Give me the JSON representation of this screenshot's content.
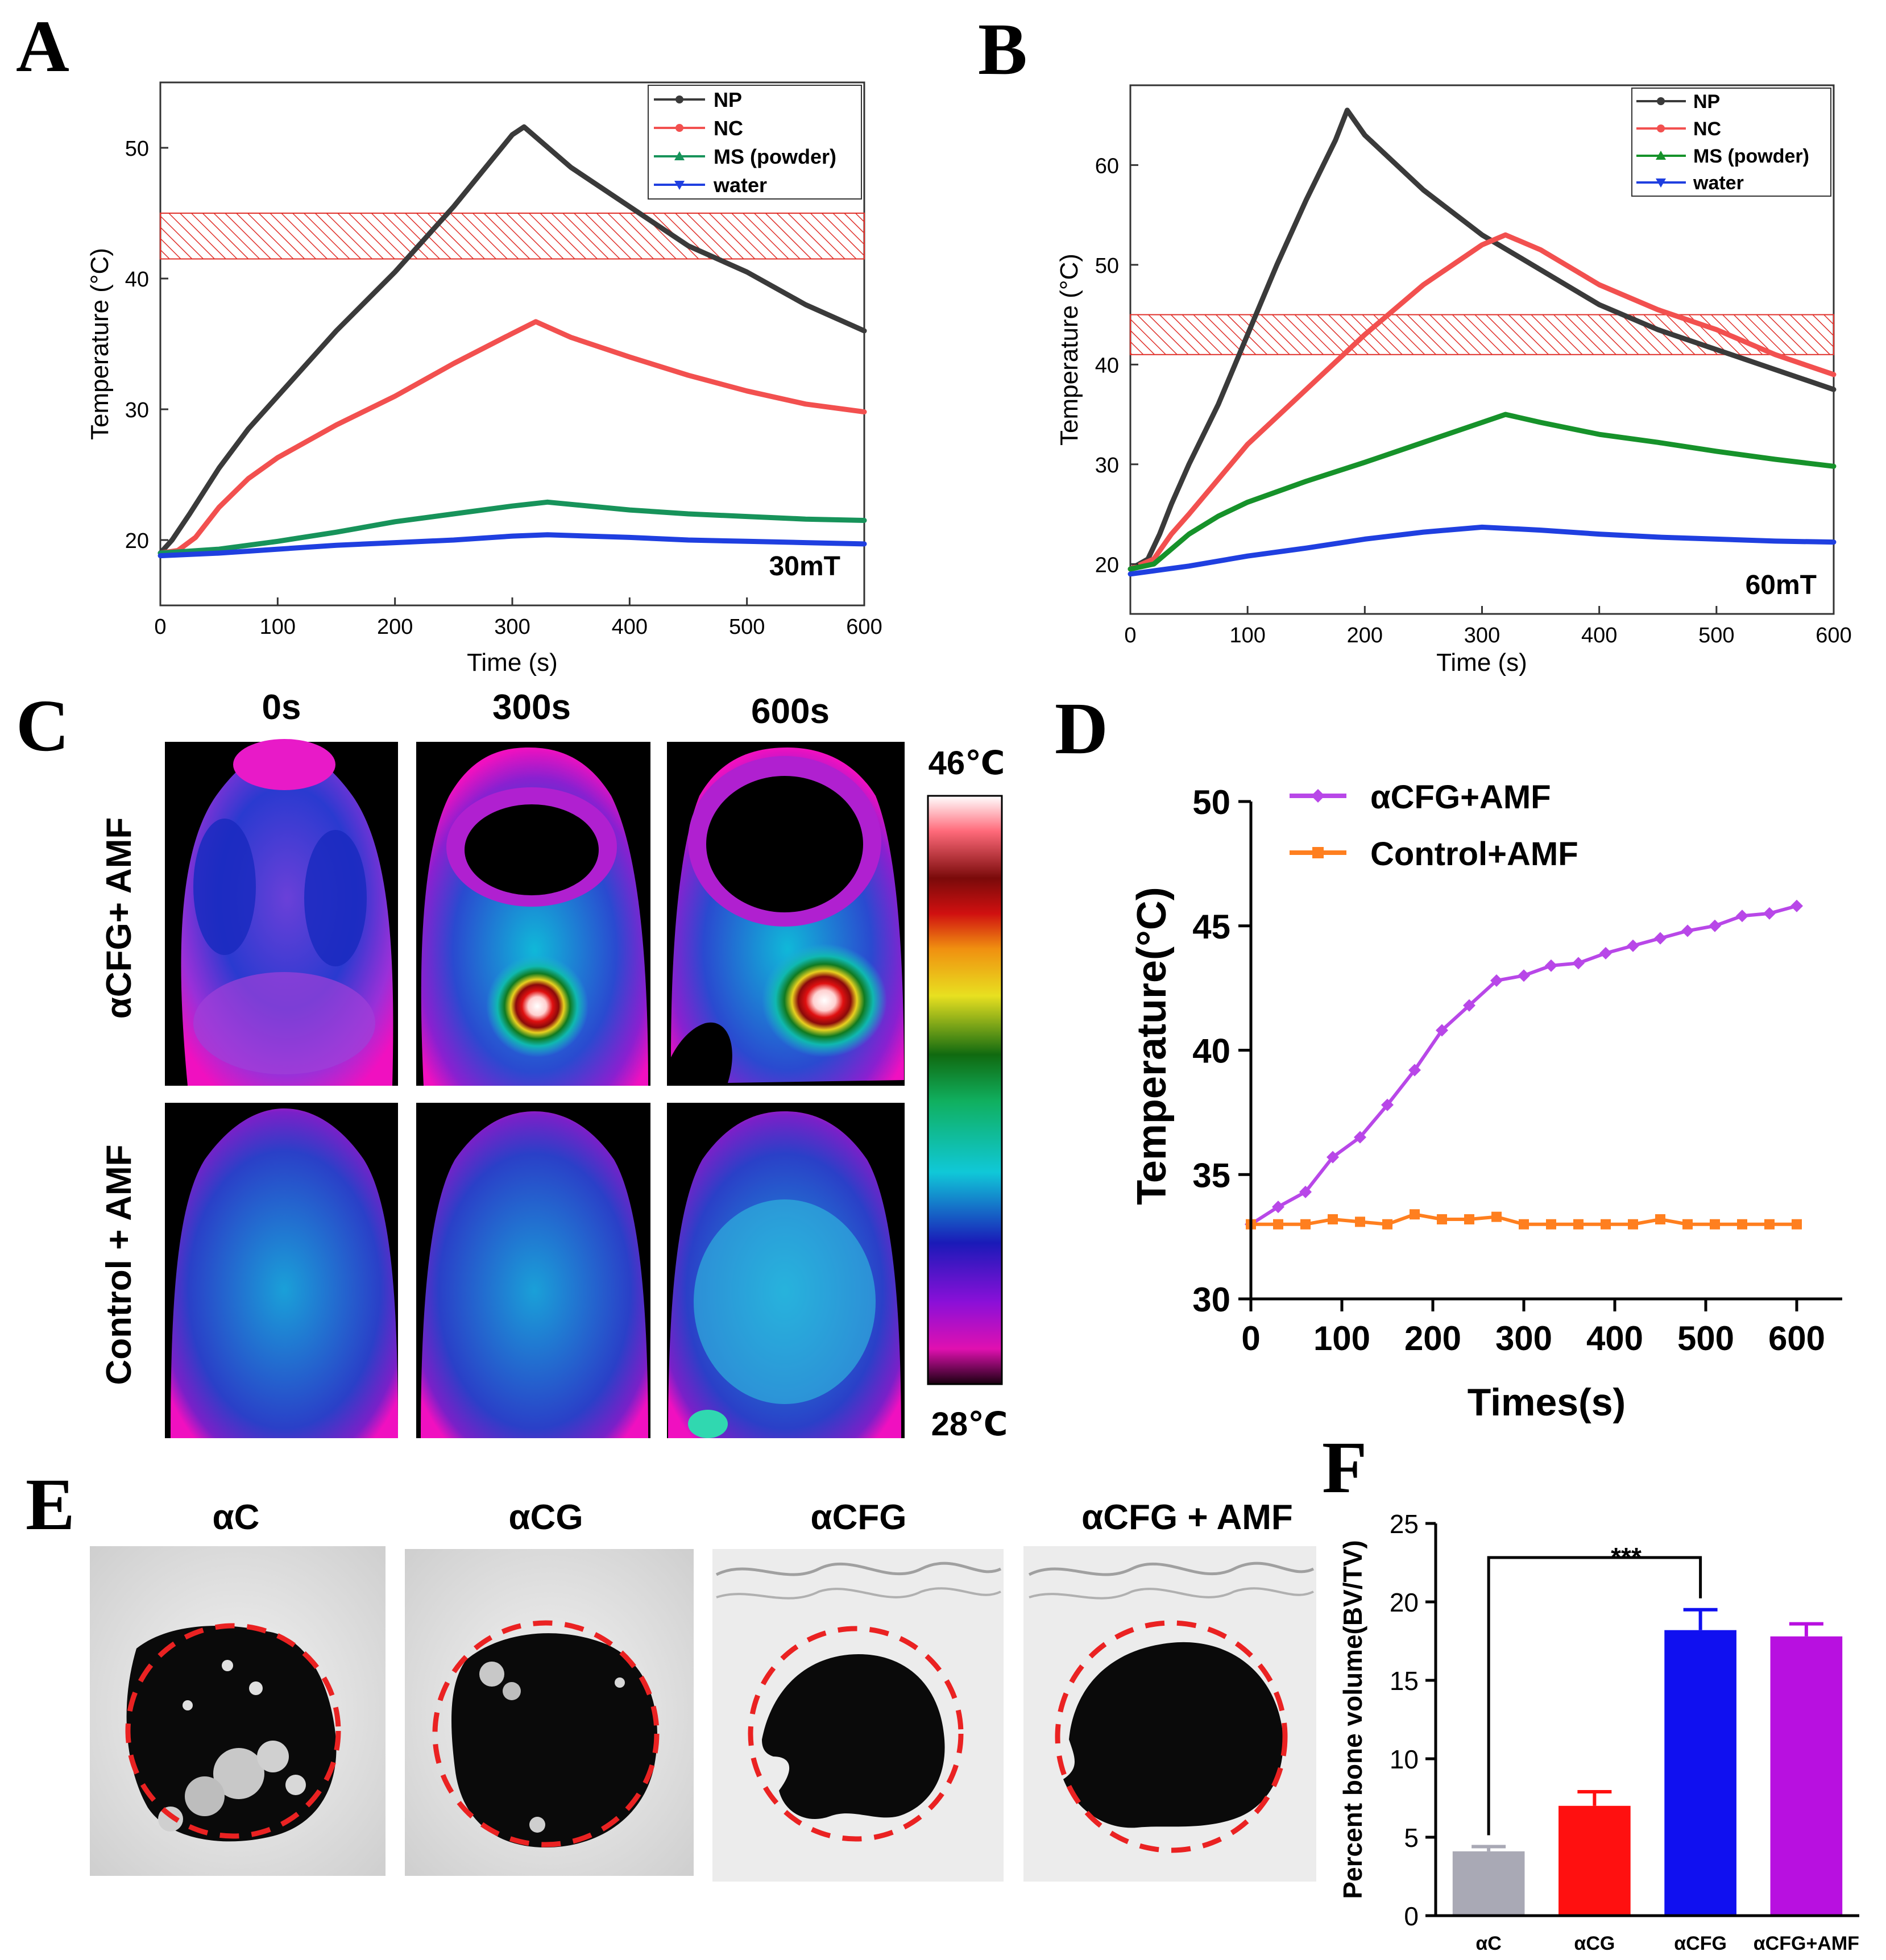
{
  "panels": {
    "a": {
      "letter": "A"
    },
    "b": {
      "letter": "B"
    },
    "c": {
      "letter": "C"
    },
    "d": {
      "letter": "D"
    },
    "e": {
      "letter": "E"
    },
    "f": {
      "letter": "F"
    }
  },
  "thermal": {
    "time_labels": [
      "0s",
      "300s",
      "600s"
    ],
    "row_labels": [
      "αCFG+ AMF",
      "Control + AMF"
    ],
    "colorbar_max": "46℃",
    "colorbar_min": "28℃",
    "colorbar_range_c": [
      28,
      46
    ]
  },
  "microct": {
    "labels": [
      "αC",
      "αCG",
      "αCFG",
      "αCFG + AMF"
    ]
  },
  "colors": {
    "NP": "#3a3a3a",
    "NC": "#f2504f",
    "MS": "#17935a",
    "water": "#1f3fe0",
    "aCFG_AMF": "#b847e8",
    "control_AMF": "#ff7f1f",
    "hatch": "#e0302a"
  },
  "chart_data": [
    {
      "id": "A",
      "type": "line",
      "field_label": "30mT",
      "xlabel": "Time (s)",
      "ylabel": "Temperature (°C)",
      "xlim": [
        0,
        600
      ],
      "ylim": [
        15,
        55
      ],
      "xticks": [
        0,
        100,
        200,
        300,
        400,
        500,
        600
      ],
      "yticks": [
        20,
        30,
        40,
        50
      ],
      "hatched_band": [
        41.5,
        45
      ],
      "legend_position": "top-right",
      "series": [
        {
          "name": "NP",
          "x": [
            0,
            10,
            25,
            50,
            75,
            100,
            150,
            200,
            250,
            300,
            310,
            350,
            400,
            450,
            500,
            550,
            600
          ],
          "y": [
            19,
            20,
            22,
            25.5,
            28.5,
            31,
            36,
            40.5,
            45.5,
            51,
            51.6,
            48.5,
            45.5,
            42.5,
            40.5,
            38,
            36
          ]
        },
        {
          "name": "NC",
          "x": [
            0,
            15,
            30,
            50,
            75,
            100,
            150,
            200,
            250,
            300,
            320,
            350,
            400,
            450,
            500,
            550,
            600
          ],
          "y": [
            19,
            19.2,
            20.2,
            22.5,
            24.7,
            26.3,
            28.8,
            31,
            33.5,
            35.8,
            36.7,
            35.5,
            34,
            32.6,
            31.4,
            30.4,
            29.8
          ]
        },
        {
          "name": "MS (powder)",
          "x": [
            0,
            50,
            100,
            150,
            200,
            250,
            300,
            330,
            400,
            450,
            500,
            550,
            600
          ],
          "y": [
            19,
            19.3,
            19.9,
            20.6,
            21.4,
            22,
            22.6,
            22.9,
            22.3,
            22,
            21.8,
            21.6,
            21.5
          ]
        },
        {
          "name": "water",
          "x": [
            0,
            50,
            100,
            150,
            200,
            250,
            300,
            330,
            400,
            450,
            500,
            550,
            600
          ],
          "y": [
            18.8,
            19,
            19.3,
            19.6,
            19.8,
            20,
            20.3,
            20.4,
            20.2,
            20,
            19.9,
            19.8,
            19.7
          ]
        }
      ]
    },
    {
      "id": "B",
      "type": "line",
      "field_label": "60mT",
      "xlabel": "Time (s)",
      "ylabel": "Temperature (°C)",
      "xlim": [
        0,
        600
      ],
      "ylim": [
        15,
        68
      ],
      "xticks": [
        0,
        100,
        200,
        300,
        400,
        500,
        600
      ],
      "yticks": [
        20,
        30,
        40,
        50,
        60
      ],
      "hatched_band": [
        41,
        45
      ],
      "legend_position": "top-right",
      "series": [
        {
          "name": "NP",
          "x": [
            0,
            15,
            25,
            35,
            50,
            75,
            100,
            125,
            150,
            175,
            185,
            200,
            250,
            300,
            350,
            400,
            450,
            500,
            550,
            600
          ],
          "y": [
            19.5,
            20.5,
            23,
            26,
            30,
            36,
            43,
            50,
            56.5,
            62.5,
            65.5,
            63,
            57.5,
            53,
            49.5,
            46,
            43.5,
            41.5,
            39.5,
            37.5
          ]
        },
        {
          "name": "NC",
          "x": [
            0,
            20,
            35,
            50,
            75,
            100,
            150,
            200,
            250,
            300,
            320,
            350,
            400,
            450,
            500,
            550,
            600
          ],
          "y": [
            19.5,
            20.5,
            23,
            25,
            28.5,
            32,
            37.5,
            43,
            48,
            52,
            53,
            51.5,
            48,
            45.5,
            43.5,
            41,
            39
          ]
        },
        {
          "name": "MS (powder)",
          "x": [
            0,
            20,
            35,
            50,
            75,
            100,
            150,
            200,
            250,
            300,
            320,
            350,
            400,
            450,
            500,
            550,
            600
          ],
          "y": [
            19.5,
            20,
            21.5,
            23,
            24.8,
            26.2,
            28.3,
            30.2,
            32.2,
            34.2,
            35,
            34.2,
            33,
            32.2,
            31.3,
            30.5,
            29.8
          ]
        },
        {
          "name": "water",
          "x": [
            0,
            50,
            100,
            150,
            200,
            250,
            300,
            350,
            400,
            450,
            500,
            550,
            600
          ],
          "y": [
            19,
            19.8,
            20.8,
            21.6,
            22.5,
            23.2,
            23.7,
            23.4,
            23,
            22.7,
            22.5,
            22.3,
            22.2
          ]
        }
      ]
    },
    {
      "id": "D",
      "type": "line",
      "xlabel": "Times(s)",
      "ylabel": "Temperature(°C)",
      "xlim": [
        0,
        650
      ],
      "ylim": [
        30,
        50
      ],
      "xticks": [
        0,
        100,
        200,
        300,
        400,
        500,
        600
      ],
      "yticks": [
        30,
        35,
        40,
        45,
        50
      ],
      "legend_position": "top-left",
      "series": [
        {
          "name": "αCFG+AMF",
          "x": [
            0,
            30,
            60,
            90,
            120,
            150,
            180,
            210,
            240,
            270,
            300,
            330,
            360,
            390,
            420,
            450,
            480,
            510,
            540,
            570,
            600
          ],
          "y": [
            33,
            33.7,
            34.3,
            35.7,
            36.5,
            37.8,
            39.2,
            40.8,
            41.8,
            42.8,
            43,
            43.4,
            43.5,
            43.9,
            44.2,
            44.5,
            44.8,
            45,
            45.4,
            45.5,
            45.8
          ]
        },
        {
          "name": "Control+AMF",
          "x": [
            0,
            30,
            60,
            90,
            120,
            150,
            180,
            210,
            240,
            270,
            300,
            330,
            360,
            390,
            420,
            450,
            480,
            510,
            540,
            570,
            600
          ],
          "y": [
            33,
            33,
            33,
            33.2,
            33.1,
            33,
            33.4,
            33.2,
            33.2,
            33.3,
            33,
            33,
            33,
            33,
            33,
            33.2,
            33,
            33,
            33,
            33,
            33
          ]
        }
      ]
    },
    {
      "id": "F",
      "type": "bar",
      "ylabel": "Percent bone volume(BV/TV)",
      "categories": [
        "αC",
        "αCG",
        "αCFG",
        "αCFG+AMF"
      ],
      "values": [
        4.1,
        7.0,
        18.2,
        17.8
      ],
      "errors": [
        0.3,
        0.9,
        1.3,
        0.8
      ],
      "ylim": [
        0,
        25
      ],
      "yticks": [
        0,
        5,
        10,
        15,
        20,
        25
      ],
      "significance": {
        "from": "αC",
        "to": "αCFG",
        "label": "***"
      }
    }
  ]
}
